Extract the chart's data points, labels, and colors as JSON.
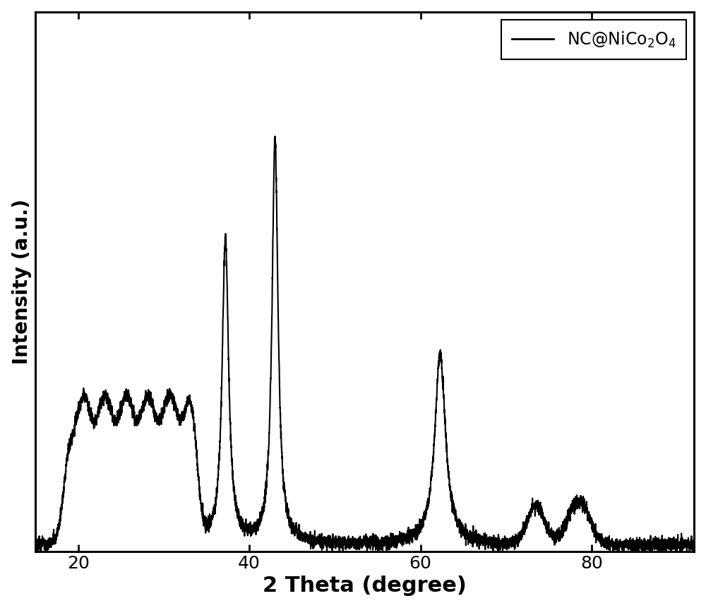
{
  "xlabel": "2 Theta (degree)",
  "ylabel": "Intensity (a.u.)",
  "xlabel_fontsize": 22,
  "ylabel_fontsize": 20,
  "tick_fontsize": 18,
  "legend_label": "NC@NiCo$_2$O$_4$",
  "legend_fontsize": 17,
  "line_color": "#000000",
  "line_width": 1.5,
  "xlim": [
    15,
    92
  ],
  "background_color": "#ffffff"
}
